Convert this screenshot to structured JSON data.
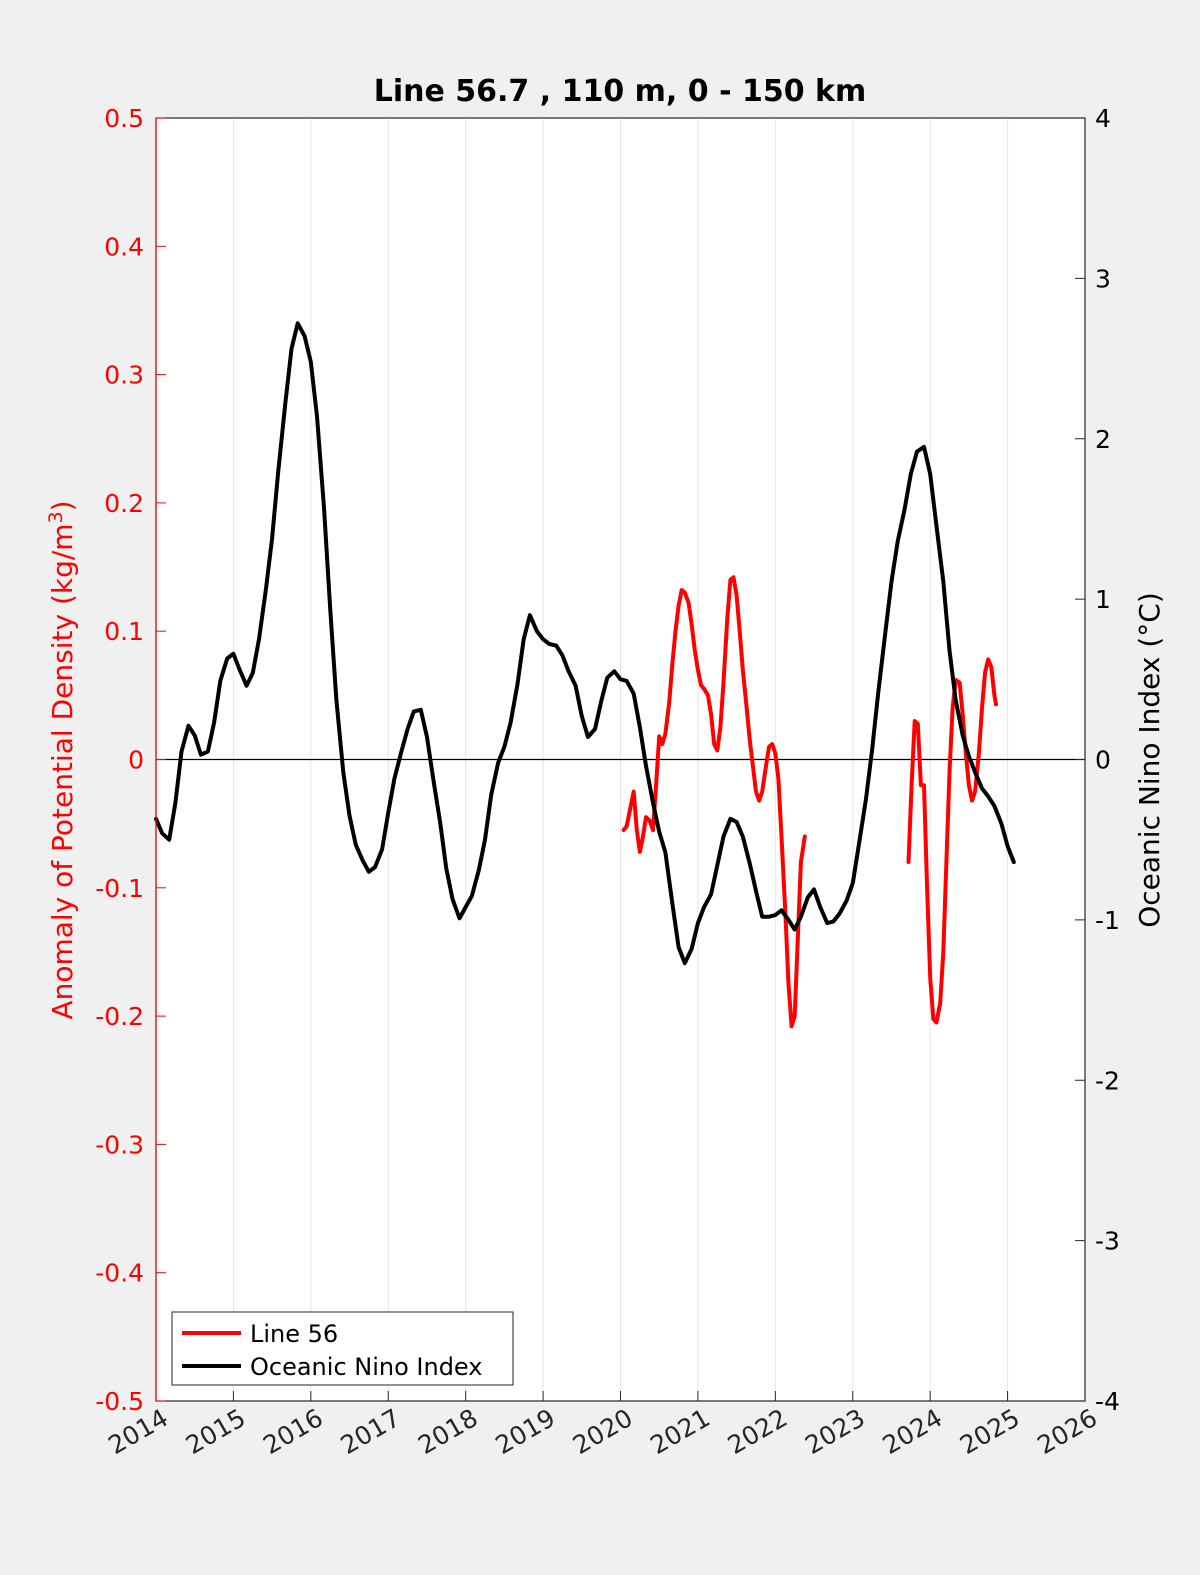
{
  "chart_data": {
    "type": "line",
    "title": "Line 56.7 , 110 m, 0 - 150 km",
    "xlim": [
      2014,
      2026
    ],
    "x_ticks": [
      "2014",
      "2015",
      "2016",
      "2017",
      "2018",
      "2019",
      "2020",
      "2021",
      "2022",
      "2023",
      "2024",
      "2025",
      "2026"
    ],
    "y_left": {
      "label": "Anomaly of Potential Density (kg/m",
      "label_sup": "3",
      "label_close": ")",
      "lim": [
        -0.5,
        0.5
      ],
      "ticks": [
        "-0.5",
        "-0.4",
        "-0.3",
        "-0.2",
        "-0.1",
        "0",
        "0.1",
        "0.2",
        "0.3",
        "0.4",
        "0.5"
      ],
      "color": "#ff0000"
    },
    "y_right": {
      "label": "Oceanic Nino Index (°C)",
      "lim": [
        -4,
        4
      ],
      "ticks": [
        "-4",
        "-3",
        "-2",
        "-1",
        "0",
        "1",
        "2",
        "3",
        "4"
      ],
      "color": "#000000"
    },
    "grid": "vertical",
    "legend_position": "bottom-left",
    "series": [
      {
        "name": "Line 56",
        "axis": "left",
        "color": "#ff0000",
        "segments": [
          [
            [
              2020.04,
              -0.055
            ],
            [
              2020.08,
              -0.052
            ],
            [
              2020.12,
              -0.04
            ],
            [
              2020.17,
              -0.025
            ],
            [
              2020.21,
              -0.055
            ],
            [
              2020.25,
              -0.072
            ],
            [
              2020.29,
              -0.06
            ],
            [
              2020.33,
              -0.045
            ],
            [
              2020.38,
              -0.048
            ],
            [
              2020.42,
              -0.055
            ],
            [
              2020.46,
              -0.02
            ],
            [
              2020.5,
              0.018
            ],
            [
              2020.54,
              0.012
            ],
            [
              2020.58,
              0.02
            ],
            [
              2020.63,
              0.045
            ],
            [
              2020.67,
              0.075
            ],
            [
              2020.71,
              0.1
            ],
            [
              2020.75,
              0.12
            ],
            [
              2020.79,
              0.132
            ],
            [
              2020.83,
              0.13
            ],
            [
              2020.88,
              0.122
            ],
            [
              2020.92,
              0.105
            ],
            [
              2020.96,
              0.085
            ],
            [
              2021.0,
              0.07
            ],
            [
              2021.04,
              0.058
            ],
            [
              2021.08,
              0.055
            ],
            [
              2021.13,
              0.05
            ],
            [
              2021.17,
              0.035
            ],
            [
              2021.21,
              0.012
            ],
            [
              2021.25,
              0.007
            ],
            [
              2021.29,
              0.025
            ],
            [
              2021.33,
              0.06
            ],
            [
              2021.38,
              0.11
            ],
            [
              2021.42,
              0.14
            ],
            [
              2021.46,
              0.142
            ],
            [
              2021.5,
              0.128
            ],
            [
              2021.54,
              0.1
            ],
            [
              2021.58,
              0.07
            ],
            [
              2021.63,
              0.04
            ],
            [
              2021.67,
              0.015
            ],
            [
              2021.71,
              -0.005
            ],
            [
              2021.75,
              -0.025
            ],
            [
              2021.79,
              -0.032
            ],
            [
              2021.83,
              -0.025
            ],
            [
              2021.88,
              -0.005
            ],
            [
              2021.92,
              0.01
            ],
            [
              2021.96,
              0.012
            ],
            [
              2022.0,
              0.005
            ],
            [
              2022.04,
              -0.015
            ],
            [
              2022.08,
              -0.06
            ],
            [
              2022.13,
              -0.12
            ],
            [
              2022.17,
              -0.175
            ],
            [
              2022.21,
              -0.208
            ],
            [
              2022.25,
              -0.2
            ],
            [
              2022.29,
              -0.14
            ],
            [
              2022.33,
              -0.08
            ],
            [
              2022.38,
              -0.06
            ]
          ],
          [
            [
              2023.72,
              -0.08
            ],
            [
              2023.76,
              -0.02
            ],
            [
              2023.8,
              0.03
            ],
            [
              2023.84,
              0.028
            ],
            [
              2023.88,
              -0.02
            ],
            [
              2023.92,
              -0.02
            ],
            [
              2023.96,
              -0.1
            ],
            [
              2024.0,
              -0.17
            ],
            [
              2024.04,
              -0.202
            ],
            [
              2024.08,
              -0.205
            ],
            [
              2024.13,
              -0.19
            ],
            [
              2024.17,
              -0.15
            ],
            [
              2024.21,
              -0.08
            ],
            [
              2024.25,
              -0.01
            ],
            [
              2024.29,
              0.04
            ],
            [
              2024.33,
              0.062
            ],
            [
              2024.38,
              0.06
            ],
            [
              2024.42,
              0.035
            ],
            [
              2024.46,
              0.005
            ],
            [
              2024.5,
              -0.02
            ],
            [
              2024.54,
              -0.032
            ],
            [
              2024.58,
              -0.025
            ],
            [
              2024.63,
              0.005
            ],
            [
              2024.67,
              0.04
            ],
            [
              2024.71,
              0.068
            ],
            [
              2024.75,
              0.078
            ],
            [
              2024.79,
              0.072
            ],
            [
              2024.83,
              0.05
            ],
            [
              2024.85,
              0.043
            ]
          ]
        ]
      },
      {
        "name": "Oceanic Nino Index",
        "axis": "right",
        "color": "#000000",
        "segments": [
          [
            [
              2014.0,
              -0.37
            ],
            [
              2014.08,
              -0.46
            ],
            [
              2014.17,
              -0.5
            ],
            [
              2014.25,
              -0.27
            ],
            [
              2014.33,
              0.05
            ],
            [
              2014.42,
              0.21
            ],
            [
              2014.5,
              0.15
            ],
            [
              2014.58,
              0.03
            ],
            [
              2014.67,
              0.05
            ],
            [
              2014.75,
              0.23
            ],
            [
              2014.83,
              0.49
            ],
            [
              2014.92,
              0.63
            ],
            [
              2015.0,
              0.66
            ],
            [
              2015.08,
              0.56
            ],
            [
              2015.17,
              0.46
            ],
            [
              2015.25,
              0.54
            ],
            [
              2015.33,
              0.75
            ],
            [
              2015.42,
              1.06
            ],
            [
              2015.5,
              1.38
            ],
            [
              2015.58,
              1.8
            ],
            [
              2015.67,
              2.22
            ],
            [
              2015.75,
              2.56
            ],
            [
              2015.83,
              2.72
            ],
            [
              2015.92,
              2.64
            ],
            [
              2016.0,
              2.48
            ],
            [
              2016.08,
              2.14
            ],
            [
              2016.17,
              1.57
            ],
            [
              2016.25,
              0.94
            ],
            [
              2016.33,
              0.37
            ],
            [
              2016.42,
              -0.08
            ],
            [
              2016.5,
              -0.35
            ],
            [
              2016.58,
              -0.53
            ],
            [
              2016.67,
              -0.63
            ],
            [
              2016.75,
              -0.7
            ],
            [
              2016.83,
              -0.67
            ],
            [
              2016.92,
              -0.56
            ],
            [
              2017.0,
              -0.33
            ],
            [
              2017.08,
              -0.12
            ],
            [
              2017.17,
              0.05
            ],
            [
              2017.25,
              0.19
            ],
            [
              2017.33,
              0.3
            ],
            [
              2017.42,
              0.31
            ],
            [
              2017.5,
              0.14
            ],
            [
              2017.58,
              -0.12
            ],
            [
              2017.67,
              -0.39
            ],
            [
              2017.75,
              -0.68
            ],
            [
              2017.83,
              -0.87
            ],
            [
              2017.92,
              -0.99
            ],
            [
              2018.0,
              -0.92
            ],
            [
              2018.08,
              -0.85
            ],
            [
              2018.17,
              -0.69
            ],
            [
              2018.25,
              -0.5
            ],
            [
              2018.33,
              -0.22
            ],
            [
              2018.42,
              -0.02
            ],
            [
              2018.5,
              0.08
            ],
            [
              2018.58,
              0.23
            ],
            [
              2018.67,
              0.47
            ],
            [
              2018.75,
              0.75
            ],
            [
              2018.83,
              0.9
            ],
            [
              2018.92,
              0.8
            ],
            [
              2019.0,
              0.75
            ],
            [
              2019.08,
              0.72
            ],
            [
              2019.17,
              0.71
            ],
            [
              2019.25,
              0.65
            ],
            [
              2019.33,
              0.55
            ],
            [
              2019.42,
              0.46
            ],
            [
              2019.5,
              0.27
            ],
            [
              2019.58,
              0.14
            ],
            [
              2019.67,
              0.19
            ],
            [
              2019.75,
              0.36
            ],
            [
              2019.83,
              0.51
            ],
            [
              2019.92,
              0.55
            ],
            [
              2020.0,
              0.5
            ],
            [
              2020.08,
              0.49
            ],
            [
              2020.17,
              0.41
            ],
            [
              2020.25,
              0.2
            ],
            [
              2020.33,
              -0.04
            ],
            [
              2020.42,
              -0.27
            ],
            [
              2020.5,
              -0.45
            ],
            [
              2020.58,
              -0.58
            ],
            [
              2020.67,
              -0.9
            ],
            [
              2020.75,
              -1.17
            ],
            [
              2020.83,
              -1.27
            ],
            [
              2020.92,
              -1.18
            ],
            [
              2021.0,
              -1.02
            ],
            [
              2021.08,
              -0.92
            ],
            [
              2021.17,
              -0.84
            ],
            [
              2021.25,
              -0.66
            ],
            [
              2021.33,
              -0.48
            ],
            [
              2021.42,
              -0.37
            ],
            [
              2021.5,
              -0.39
            ],
            [
              2021.58,
              -0.48
            ],
            [
              2021.67,
              -0.65
            ],
            [
              2021.75,
              -0.82
            ],
            [
              2021.83,
              -0.98
            ],
            [
              2021.92,
              -0.98
            ],
            [
              2022.0,
              -0.97
            ],
            [
              2022.08,
              -0.94
            ],
            [
              2022.17,
              -1.0
            ],
            [
              2022.25,
              -1.06
            ],
            [
              2022.33,
              -0.98
            ],
            [
              2022.42,
              -0.86
            ],
            [
              2022.5,
              -0.81
            ],
            [
              2022.58,
              -0.92
            ],
            [
              2022.67,
              -1.02
            ],
            [
              2022.75,
              -1.01
            ],
            [
              2022.83,
              -0.96
            ],
            [
              2022.92,
              -0.88
            ],
            [
              2023.0,
              -0.77
            ],
            [
              2023.08,
              -0.53
            ],
            [
              2023.17,
              -0.25
            ],
            [
              2023.25,
              0.06
            ],
            [
              2023.33,
              0.42
            ],
            [
              2023.42,
              0.79
            ],
            [
              2023.5,
              1.11
            ],
            [
              2023.58,
              1.36
            ],
            [
              2023.67,
              1.56
            ],
            [
              2023.75,
              1.78
            ],
            [
              2023.83,
              1.92
            ],
            [
              2023.92,
              1.95
            ],
            [
              2024.0,
              1.78
            ],
            [
              2024.08,
              1.46
            ],
            [
              2024.17,
              1.11
            ],
            [
              2024.25,
              0.68
            ],
            [
              2024.33,
              0.37
            ],
            [
              2024.42,
              0.15
            ],
            [
              2024.5,
              0.02
            ],
            [
              2024.58,
              -0.08
            ],
            [
              2024.67,
              -0.18
            ],
            [
              2024.75,
              -0.23
            ],
            [
              2024.83,
              -0.29
            ],
            [
              2024.92,
              -0.4
            ],
            [
              2025.0,
              -0.54
            ],
            [
              2025.08,
              -0.64
            ]
          ]
        ]
      }
    ]
  }
}
